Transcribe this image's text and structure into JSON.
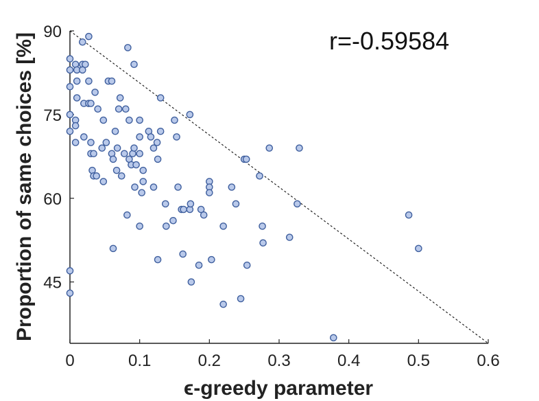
{
  "chart_data": {
    "type": "scatter",
    "xlabel": "ϵ-greedy parameter",
    "ylabel": "Proportion of same choices [%]",
    "annotation": "r=-0.59584",
    "xlim": [
      0,
      0.6
    ],
    "ylim": [
      34,
      90
    ],
    "xticks": [
      "0",
      "0.1",
      "0.2",
      "0.3",
      "0.4",
      "0.5",
      "0.6"
    ],
    "yticks": [
      "45",
      "60",
      "75",
      "90"
    ],
    "grid": false,
    "reference_line": {
      "style": "dashed",
      "from": [
        0,
        90
      ],
      "to": [
        0.6,
        34
      ]
    },
    "colors": {
      "marker_fill": "#b9c9ea",
      "marker_edge": "#3f5f9e",
      "axis": "#222222"
    },
    "points": [
      {
        "x": 0.0,
        "y": 85
      },
      {
        "x": 0.0,
        "y": 83
      },
      {
        "x": 0.0,
        "y": 80
      },
      {
        "x": 0.0,
        "y": 75
      },
      {
        "x": 0.0,
        "y": 72
      },
      {
        "x": 0.0,
        "y": 47
      },
      {
        "x": 0.0,
        "y": 43
      },
      {
        "x": 0.008,
        "y": 84
      },
      {
        "x": 0.008,
        "y": 74
      },
      {
        "x": 0.008,
        "y": 73
      },
      {
        "x": 0.008,
        "y": 70
      },
      {
        "x": 0.01,
        "y": 83
      },
      {
        "x": 0.01,
        "y": 81
      },
      {
        "x": 0.01,
        "y": 78
      },
      {
        "x": 0.018,
        "y": 88
      },
      {
        "x": 0.018,
        "y": 84
      },
      {
        "x": 0.018,
        "y": 83
      },
      {
        "x": 0.02,
        "y": 77
      },
      {
        "x": 0.02,
        "y": 71
      },
      {
        "x": 0.022,
        "y": 84
      },
      {
        "x": 0.027,
        "y": 89
      },
      {
        "x": 0.027,
        "y": 81
      },
      {
        "x": 0.027,
        "y": 77
      },
      {
        "x": 0.03,
        "y": 77
      },
      {
        "x": 0.03,
        "y": 70
      },
      {
        "x": 0.03,
        "y": 68
      },
      {
        "x": 0.032,
        "y": 65
      },
      {
        "x": 0.034,
        "y": 68
      },
      {
        "x": 0.034,
        "y": 64
      },
      {
        "x": 0.036,
        "y": 79
      },
      {
        "x": 0.038,
        "y": 64
      },
      {
        "x": 0.04,
        "y": 76
      },
      {
        "x": 0.046,
        "y": 69
      },
      {
        "x": 0.048,
        "y": 74
      },
      {
        "x": 0.048,
        "y": 63
      },
      {
        "x": 0.052,
        "y": 70
      },
      {
        "x": 0.055,
        "y": 81
      },
      {
        "x": 0.06,
        "y": 81
      },
      {
        "x": 0.06,
        "y": 68
      },
      {
        "x": 0.062,
        "y": 67
      },
      {
        "x": 0.062,
        "y": 51
      },
      {
        "x": 0.065,
        "y": 72
      },
      {
        "x": 0.067,
        "y": 65
      },
      {
        "x": 0.068,
        "y": 69
      },
      {
        "x": 0.07,
        "y": 76
      },
      {
        "x": 0.072,
        "y": 78
      },
      {
        "x": 0.074,
        "y": 64
      },
      {
        "x": 0.078,
        "y": 68
      },
      {
        "x": 0.08,
        "y": 76
      },
      {
        "x": 0.082,
        "y": 57
      },
      {
        "x": 0.083,
        "y": 87
      },
      {
        "x": 0.085,
        "y": 74
      },
      {
        "x": 0.085,
        "y": 67
      },
      {
        "x": 0.088,
        "y": 66
      },
      {
        "x": 0.09,
        "y": 68
      },
      {
        "x": 0.092,
        "y": 84
      },
      {
        "x": 0.092,
        "y": 69
      },
      {
        "x": 0.093,
        "y": 62
      },
      {
        "x": 0.095,
        "y": 66
      },
      {
        "x": 0.1,
        "y": 74
      },
      {
        "x": 0.1,
        "y": 71
      },
      {
        "x": 0.1,
        "y": 68
      },
      {
        "x": 0.1,
        "y": 55
      },
      {
        "x": 0.103,
        "y": 61
      },
      {
        "x": 0.105,
        "y": 65
      },
      {
        "x": 0.105,
        "y": 63
      },
      {
        "x": 0.113,
        "y": 72
      },
      {
        "x": 0.116,
        "y": 71
      },
      {
        "x": 0.12,
        "y": 69
      },
      {
        "x": 0.12,
        "y": 62
      },
      {
        "x": 0.125,
        "y": 70
      },
      {
        "x": 0.126,
        "y": 67
      },
      {
        "x": 0.126,
        "y": 49
      },
      {
        "x": 0.13,
        "y": 78
      },
      {
        "x": 0.13,
        "y": 72
      },
      {
        "x": 0.137,
        "y": 59
      },
      {
        "x": 0.138,
        "y": 55
      },
      {
        "x": 0.148,
        "y": 56
      },
      {
        "x": 0.15,
        "y": 74
      },
      {
        "x": 0.153,
        "y": 71
      },
      {
        "x": 0.155,
        "y": 62
      },
      {
        "x": 0.16,
        "y": 58
      },
      {
        "x": 0.162,
        "y": 50
      },
      {
        "x": 0.163,
        "y": 58
      },
      {
        "x": 0.172,
        "y": 75
      },
      {
        "x": 0.172,
        "y": 58
      },
      {
        "x": 0.173,
        "y": 59
      },
      {
        "x": 0.174,
        "y": 45
      },
      {
        "x": 0.185,
        "y": 48
      },
      {
        "x": 0.188,
        "y": 58
      },
      {
        "x": 0.192,
        "y": 57
      },
      {
        "x": 0.2,
        "y": 63
      },
      {
        "x": 0.2,
        "y": 62
      },
      {
        "x": 0.2,
        "y": 61
      },
      {
        "x": 0.203,
        "y": 49
      },
      {
        "x": 0.22,
        "y": 55
      },
      {
        "x": 0.22,
        "y": 41
      },
      {
        "x": 0.232,
        "y": 62
      },
      {
        "x": 0.238,
        "y": 59
      },
      {
        "x": 0.245,
        "y": 42
      },
      {
        "x": 0.25,
        "y": 67
      },
      {
        "x": 0.253,
        "y": 67
      },
      {
        "x": 0.254,
        "y": 48
      },
      {
        "x": 0.272,
        "y": 64
      },
      {
        "x": 0.276,
        "y": 55
      },
      {
        "x": 0.277,
        "y": 52
      },
      {
        "x": 0.286,
        "y": 69
      },
      {
        "x": 0.315,
        "y": 53
      },
      {
        "x": 0.326,
        "y": 59
      },
      {
        "x": 0.329,
        "y": 69
      },
      {
        "x": 0.378,
        "y": 35
      },
      {
        "x": 0.486,
        "y": 57
      },
      {
        "x": 0.5,
        "y": 51
      }
    ]
  }
}
